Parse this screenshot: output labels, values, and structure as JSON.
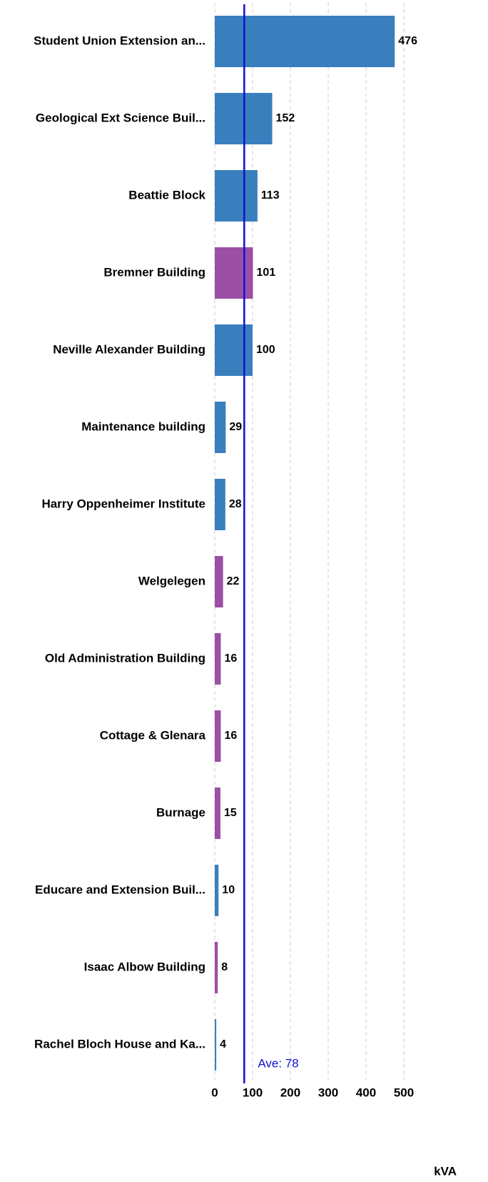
{
  "chart_data": {
    "type": "hbar",
    "categories": [
      "Student Union Extension an...",
      "Geological Ext Science Buil...",
      "Beattie Block",
      "Bremner Building",
      "Neville Alexander Building",
      "Maintenance building",
      "Harry Oppenheimer Institute",
      "Welgelegen",
      "Old Administration Building",
      "Cottage & Glenara",
      "Burnage",
      "Educare and Extension Buil...",
      "Isaac Albow Building",
      "Rachel Bloch House and Ka..."
    ],
    "values": [
      476,
      152,
      113,
      101,
      100,
      29,
      28,
      22,
      16,
      16,
      15,
      10,
      8,
      4
    ],
    "colors": [
      "#3a7fbd",
      "#3a7fbd",
      "#3a7fbd",
      "#9b4fa5",
      "#3a7fbd",
      "#3a7fbd",
      "#3a7fbd",
      "#9b4fa5",
      "#9b4fa5",
      "#9b4fa5",
      "#9b4fa5",
      "#3a7fbd",
      "#9b4fa5",
      "#3a7fbd"
    ],
    "xlim": [
      0,
      500
    ],
    "xticks": [
      0,
      100,
      200,
      300,
      400,
      500
    ],
    "grid": true,
    "xlabel": "kVA",
    "average": {
      "value": 78,
      "label": "Ave: 78",
      "color": "#1010d0"
    }
  }
}
